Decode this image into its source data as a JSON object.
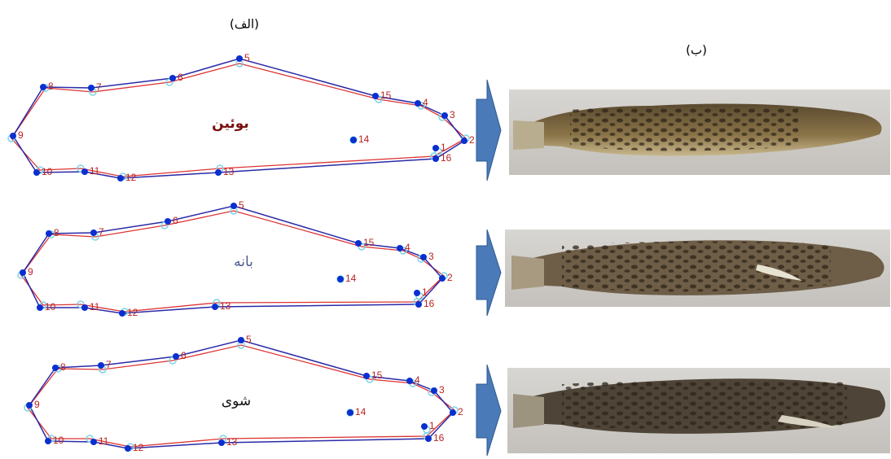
{
  "panels": {
    "a": {
      "label": "(الف)"
    },
    "b": {
      "label": "(ب)"
    }
  },
  "shapes": [
    {
      "name": "بوئین",
      "landmarks": [
        "1",
        "2",
        "3",
        "4",
        "5",
        "6",
        "7",
        "8",
        "9",
        "10",
        "11",
        "12",
        "13",
        "14",
        "15",
        "16"
      ]
    },
    {
      "name": "بانه",
      "landmarks": [
        "1",
        "2",
        "3",
        "4",
        "5",
        "6",
        "7",
        "8",
        "9",
        "10",
        "11",
        "12",
        "13",
        "14",
        "15",
        "16"
      ]
    },
    {
      "name": "شوی",
      "landmarks": [
        "1",
        "2",
        "3",
        "4",
        "5",
        "6",
        "7",
        "8",
        "9",
        "10",
        "11",
        "12",
        "13",
        "14",
        "15",
        "16"
      ]
    }
  ]
}
